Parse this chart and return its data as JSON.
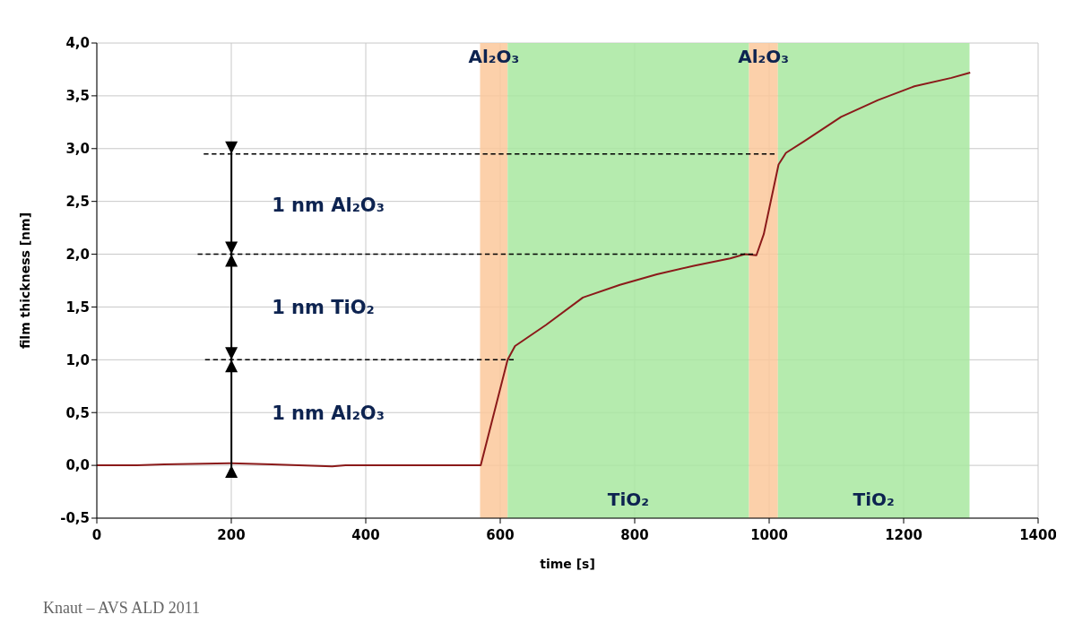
{
  "chart_data": {
    "type": "line",
    "xlabel": "time [s]",
    "ylabel": "film thickness [nm]",
    "xlim": [
      0,
      1400
    ],
    "xticks": [
      0,
      200,
      400,
      600,
      800,
      1000,
      1200,
      1400
    ],
    "ylim": [
      -0.5,
      4.0
    ],
    "yticks": [
      {
        "value": -0.5,
        "label": "-0,5"
      },
      {
        "value": 0,
        "label": "0,0"
      },
      {
        "value": 0.5,
        "label": "0,5"
      },
      {
        "value": 1,
        "label": "1,0"
      },
      {
        "value": 1.5,
        "label": "1,5"
      },
      {
        "value": 2,
        "label": "2,0"
      },
      {
        "value": 2.5,
        "label": "2,5"
      },
      {
        "value": 3,
        "label": "3,0"
      },
      {
        "value": 3.5,
        "label": "3,5"
      },
      {
        "value": 4,
        "label": "4,0"
      }
    ],
    "grid": true,
    "series": [
      {
        "color": "#8b1a1a",
        "x": [
          0,
          60,
          100,
          200,
          260,
          350,
          370,
          571,
          611,
          622,
          668,
          723,
          778,
          833,
          888,
          942,
          964,
          981,
          992,
          1014,
          1025,
          1052,
          1107,
          1162,
          1216,
          1271,
          1299
        ],
        "values": [
          0,
          0,
          0.01,
          0.02,
          0.01,
          -0.01,
          0,
          0,
          1.0,
          1.13,
          1.33,
          1.59,
          1.71,
          1.81,
          1.89,
          1.96,
          2.0,
          1.99,
          2.19,
          2.85,
          2.96,
          3.07,
          3.3,
          3.46,
          3.59,
          3.67,
          3.72
        ]
      },
      {
        "color": "#000000",
        "line_style": "dashed",
        "x": [
          161,
          620
        ],
        "values": [
          1.0,
          1.0
        ]
      },
      {
        "color": "#000000",
        "line_style": "dashed",
        "x": [
          150,
          976
        ],
        "values": [
          2.0,
          2.0
        ]
      },
      {
        "color": "#000000",
        "line_style": "dashed",
        "x": [
          159,
          1008
        ],
        "values": [
          2.95,
          2.95
        ]
      }
    ],
    "bands": [
      {
        "axis": "x",
        "from": 570,
        "to": 611,
        "label": "Al₂O₃",
        "color": "#fcc89b"
      },
      {
        "axis": "x",
        "from": 611,
        "to": 970,
        "label": "TiO₂",
        "color": "#a8e8a0"
      },
      {
        "axis": "x",
        "from": 970,
        "to": 1013,
        "label": "Al₂O₃",
        "color": "#fcc89b"
      },
      {
        "axis": "x",
        "from": 1013,
        "to": 1298,
        "label": "TiO₂",
        "color": "#a8e8a0"
      }
    ],
    "annotations": [
      "1 nm Al₂O₃",
      "1 nm TiO₂",
      "1 nm Al₂O₃",
      "Knaut – AVS ALD 2011"
    ]
  }
}
